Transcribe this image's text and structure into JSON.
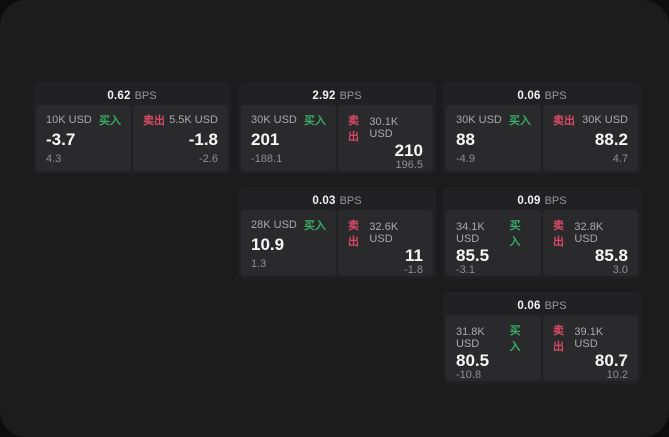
{
  "colors": {
    "outer_background": "#0d0d0d",
    "panel_background": "#1c1c1d",
    "card_background": "#212123",
    "tile_background": "#2a2a2c",
    "buy_green": "#38a967",
    "sell_red": "#d64a67",
    "primary_text": "#f2f2f3",
    "muted_text": "#97979a"
  },
  "labels": {
    "buy": "买入",
    "sell": "卖出",
    "bps": "BPS"
  },
  "cards": [
    {
      "row": 1,
      "col": 1,
      "bps": "0.62",
      "buy": {
        "amount": "10K USD",
        "value": "-3.7",
        "delta": "4.3"
      },
      "sell": {
        "amount": "5.5K USD",
        "value": "-1.8",
        "delta": "-2.6"
      }
    },
    {
      "row": 1,
      "col": 2,
      "bps": "2.92",
      "buy": {
        "amount": "30K USD",
        "value": "201",
        "delta": "-188.1"
      },
      "sell": {
        "amount": "30.1K USD",
        "value": "210",
        "delta": "196.5"
      }
    },
    {
      "row": 1,
      "col": 3,
      "bps": "0.06",
      "buy": {
        "amount": "30K USD",
        "value": "88",
        "delta": "-4.9"
      },
      "sell": {
        "amount": "30K USD",
        "value": "88.2",
        "delta": "4.7"
      }
    },
    {
      "row": 2,
      "col": 2,
      "bps": "0.03",
      "buy": {
        "amount": "28K USD",
        "value": "10.9",
        "delta": "1.3"
      },
      "sell": {
        "amount": "32.6K USD",
        "value": "11",
        "delta": "-1.8"
      }
    },
    {
      "row": 2,
      "col": 3,
      "bps": "0.09",
      "buy": {
        "amount": "34.1K USD",
        "value": "85.5",
        "delta": "-3.1"
      },
      "sell": {
        "amount": "32.8K USD",
        "value": "85.8",
        "delta": "3.0"
      }
    },
    {
      "row": 3,
      "col": 3,
      "bps": "0.06",
      "buy": {
        "amount": "31.8K USD",
        "value": "80.5",
        "delta": "-10.8"
      },
      "sell": {
        "amount": "39.1K USD",
        "value": "80.7",
        "delta": "10.2"
      }
    }
  ]
}
